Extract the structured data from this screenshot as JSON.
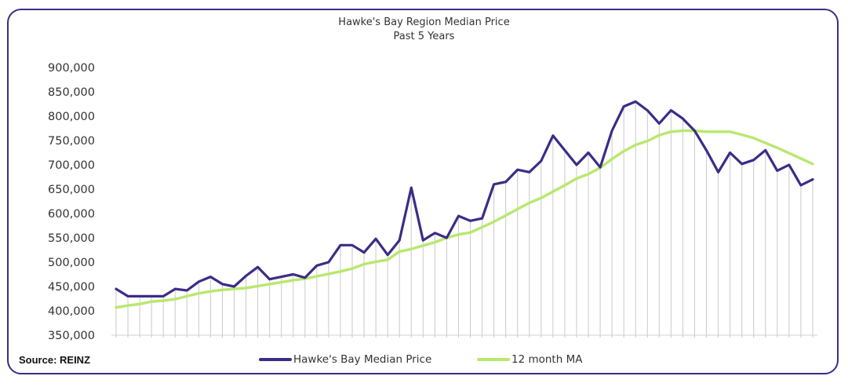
{
  "chart_data": {
    "type": "line",
    "title": "Hawke's Bay Region Median Price",
    "subtitle": "Past 5 Years",
    "ylim": [
      350000,
      900000
    ],
    "yticks": [
      "350,000",
      "400,000",
      "450,000",
      "500,000",
      "550,000",
      "600,000",
      "650,000",
      "700,000",
      "750,000",
      "800,000",
      "850,000",
      "900,000"
    ],
    "ytick_values": [
      350000,
      400000,
      450000,
      500000,
      550000,
      600000,
      650000,
      700000,
      750000,
      800000,
      850000,
      900000
    ],
    "grid": "vertical drop lines",
    "legend_position": "bottom",
    "series": [
      {
        "name": "Hawke's Bay Median Price",
        "color": "#3b2d86",
        "values": [
          445000,
          430000,
          430000,
          430000,
          430000,
          445000,
          442000,
          460000,
          470000,
          455000,
          450000,
          472000,
          490000,
          465000,
          470000,
          475000,
          468000,
          493000,
          500000,
          535000,
          535000,
          520000,
          548000,
          515000,
          545000,
          653000,
          545000,
          560000,
          550000,
          595000,
          585000,
          590000,
          660000,
          665000,
          690000,
          685000,
          708000,
          760000,
          730000,
          700000,
          725000,
          695000,
          770000,
          820000,
          830000,
          812000,
          785000,
          812000,
          795000,
          770000,
          730000,
          685000,
          725000,
          702000,
          710000,
          730000,
          688000,
          700000,
          658000,
          670000
        ]
      },
      {
        "name": "12 month MA",
        "color": "#b8e86f",
        "values": [
          407000,
          411000,
          414000,
          419000,
          421000,
          424000,
          430000,
          436000,
          440000,
          443000,
          445000,
          447000,
          451000,
          455000,
          459000,
          463000,
          466000,
          471000,
          476000,
          481000,
          487000,
          496000,
          501000,
          505000,
          522000,
          527000,
          534000,
          541000,
          550000,
          557000,
          561000,
          572000,
          583000,
          596000,
          609000,
          622000,
          632000,
          645000,
          658000,
          672000,
          681000,
          694000,
          712000,
          728000,
          741000,
          749000,
          761000,
          768000,
          770000,
          770000,
          768000,
          768000,
          768000,
          762000,
          755000,
          745000,
          735000,
          724000,
          713000,
          702000
        ]
      }
    ]
  },
  "source": "Source: REINZ"
}
